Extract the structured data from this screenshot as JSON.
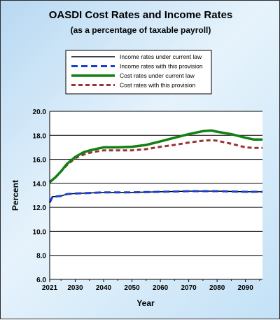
{
  "chart_data": {
    "type": "line",
    "title": "OASDI Cost Rates and Income Rates",
    "subtitle": "(as a percentage of taxable payroll)",
    "xlabel": "Year",
    "ylabel": "Percent",
    "xlim": [
      2021,
      2096
    ],
    "ylim": [
      6.0,
      20.0
    ],
    "x_ticks": [
      "2021",
      "2030",
      "2040",
      "2050",
      "2060",
      "2070",
      "2080",
      "2090"
    ],
    "x_tick_values": [
      2021,
      2030,
      2040,
      2050,
      2060,
      2070,
      2080,
      2090
    ],
    "y_ticks": [
      "6.0",
      "8.0",
      "10.0",
      "12.0",
      "14.0",
      "16.0",
      "18.0",
      "20.0"
    ],
    "y_tick_values": [
      6,
      8,
      10,
      12,
      14,
      16,
      18,
      20
    ],
    "grid": true,
    "legend_position": "top",
    "series": [
      {
        "name": "Income rates under current law",
        "color": "#000000",
        "style": "solid",
        "x": [
          2021,
          2022,
          2023,
          2025,
          2027,
          2030,
          2035,
          2040,
          2050,
          2060,
          2070,
          2080,
          2090,
          2096
        ],
        "y": [
          12.4,
          12.9,
          12.9,
          12.95,
          13.1,
          13.15,
          13.2,
          13.25,
          13.25,
          13.3,
          13.35,
          13.35,
          13.3,
          13.3
        ]
      },
      {
        "name": "Income rates with this provision",
        "color": "#1a3fd6",
        "style": "dashed",
        "x": [
          2021,
          2022,
          2023,
          2025,
          2027,
          2030,
          2035,
          2040,
          2050,
          2060,
          2070,
          2080,
          2090,
          2096
        ],
        "y": [
          12.4,
          12.9,
          12.9,
          12.95,
          13.1,
          13.15,
          13.2,
          13.25,
          13.25,
          13.3,
          13.35,
          13.35,
          13.3,
          13.3
        ]
      },
      {
        "name": "Cost rates under current law",
        "color": "#128012",
        "style": "solid",
        "x": [
          2021,
          2023,
          2025,
          2027,
          2030,
          2033,
          2036,
          2040,
          2045,
          2050,
          2055,
          2060,
          2065,
          2070,
          2075,
          2078,
          2080,
          2085,
          2090,
          2093,
          2096
        ],
        "y": [
          14.1,
          14.5,
          15.0,
          15.6,
          16.2,
          16.6,
          16.8,
          17.0,
          17.0,
          17.05,
          17.2,
          17.5,
          17.8,
          18.1,
          18.35,
          18.4,
          18.3,
          18.1,
          17.8,
          17.65,
          17.65
        ]
      },
      {
        "name": "Cost rates with this provision",
        "color": "#9a3333",
        "style": "dashed",
        "x": [
          2021,
          2023,
          2025,
          2027,
          2030,
          2033,
          2036,
          2040,
          2045,
          2050,
          2055,
          2060,
          2065,
          2070,
          2075,
          2078,
          2080,
          2085,
          2090,
          2093,
          2096
        ],
        "y": [
          14.1,
          14.5,
          15.0,
          15.5,
          16.1,
          16.4,
          16.6,
          16.75,
          16.75,
          16.75,
          16.85,
          17.05,
          17.2,
          17.4,
          17.55,
          17.6,
          17.55,
          17.3,
          17.0,
          16.95,
          16.95
        ]
      }
    ]
  }
}
